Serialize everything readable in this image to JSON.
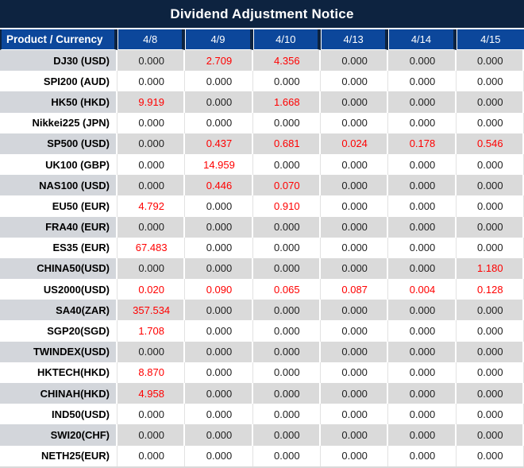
{
  "title": "Dividend Adjustment Notice",
  "colors": {
    "title_bg": "#0D2340",
    "header_bg": "#0C479B",
    "separator_dark": "#0D2340",
    "row_alt_bg": "#DADADA",
    "row_alt_label_bg": "#D3D6DB",
    "header_text": "#FFFFFF",
    "value_text": "#1F1F1F",
    "nonzero_value_text": "#FF0000"
  },
  "chart_data": {
    "type": "table",
    "title": "Dividend Adjustment Notice",
    "columns": [
      "Product / Currency",
      "4/8",
      "4/9",
      "4/10",
      "4/13",
      "4/14",
      "4/15"
    ],
    "rows": [
      {
        "product": "DJ30 (USD)",
        "values": [
          "0.000",
          "2.709",
          "4.356",
          "0.000",
          "0.000",
          "0.000"
        ]
      },
      {
        "product": "SPI200 (AUD)",
        "values": [
          "0.000",
          "0.000",
          "0.000",
          "0.000",
          "0.000",
          "0.000"
        ]
      },
      {
        "product": "HK50 (HKD)",
        "values": [
          "9.919",
          "0.000",
          "1.668",
          "0.000",
          "0.000",
          "0.000"
        ]
      },
      {
        "product": "Nikkei225 (JPN)",
        "values": [
          "0.000",
          "0.000",
          "0.000",
          "0.000",
          "0.000",
          "0.000"
        ]
      },
      {
        "product": "SP500 (USD)",
        "values": [
          "0.000",
          "0.437",
          "0.681",
          "0.024",
          "0.178",
          "0.546"
        ]
      },
      {
        "product": "UK100 (GBP)",
        "values": [
          "0.000",
          "14.959",
          "0.000",
          "0.000",
          "0.000",
          "0.000"
        ]
      },
      {
        "product": "NAS100 (USD)",
        "values": [
          "0.000",
          "0.446",
          "0.070",
          "0.000",
          "0.000",
          "0.000"
        ]
      },
      {
        "product": "EU50 (EUR)",
        "values": [
          "4.792",
          "0.000",
          "0.910",
          "0.000",
          "0.000",
          "0.000"
        ]
      },
      {
        "product": "FRA40 (EUR)",
        "values": [
          "0.000",
          "0.000",
          "0.000",
          "0.000",
          "0.000",
          "0.000"
        ]
      },
      {
        "product": "ES35 (EUR)",
        "values": [
          "67.483",
          "0.000",
          "0.000",
          "0.000",
          "0.000",
          "0.000"
        ]
      },
      {
        "product": "CHINA50(USD)",
        "values": [
          "0.000",
          "0.000",
          "0.000",
          "0.000",
          "0.000",
          "1.180"
        ]
      },
      {
        "product": "US2000(USD)",
        "values": [
          "0.020",
          "0.090",
          "0.065",
          "0.087",
          "0.004",
          "0.128"
        ]
      },
      {
        "product": "SA40(ZAR)",
        "values": [
          "357.534",
          "0.000",
          "0.000",
          "0.000",
          "0.000",
          "0.000"
        ]
      },
      {
        "product": "SGP20(SGD)",
        "values": [
          "1.708",
          "0.000",
          "0.000",
          "0.000",
          "0.000",
          "0.000"
        ]
      },
      {
        "product": "TWINDEX(USD)",
        "values": [
          "0.000",
          "0.000",
          "0.000",
          "0.000",
          "0.000",
          "0.000"
        ]
      },
      {
        "product": "HKTECH(HKD)",
        "values": [
          "8.870",
          "0.000",
          "0.000",
          "0.000",
          "0.000",
          "0.000"
        ]
      },
      {
        "product": "CHINAH(HKD)",
        "values": [
          "4.958",
          "0.000",
          "0.000",
          "0.000",
          "0.000",
          "0.000"
        ]
      },
      {
        "product": "IND50(USD)",
        "values": [
          "0.000",
          "0.000",
          "0.000",
          "0.000",
          "0.000",
          "0.000"
        ]
      },
      {
        "product": "SWI20(CHF)",
        "values": [
          "0.000",
          "0.000",
          "0.000",
          "0.000",
          "0.000",
          "0.000"
        ]
      },
      {
        "product": "NETH25(EUR)",
        "values": [
          "0.000",
          "0.000",
          "0.000",
          "0.000",
          "0.000",
          "0.000"
        ]
      }
    ],
    "layout_hints": {
      "row_striping": "odd rows gray, even rows white",
      "highlight_rule": "non-zero values rendered in red",
      "product_column_alignment": "right",
      "value_column_alignment": "center"
    }
  }
}
